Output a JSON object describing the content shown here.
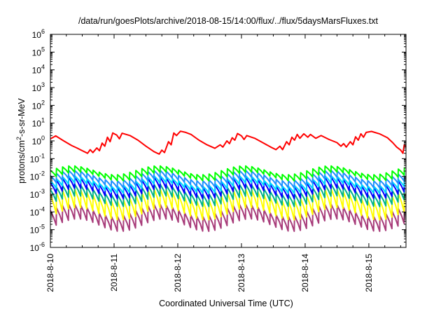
{
  "chart_data": {
    "type": "line",
    "title": "/data/run/goesPlots/archive/2018-08-15/14:00/flux/../flux/5daysMarsFluxes.txt",
    "xlabel": "Coordinated Universal Time (UTC)",
    "ylabel": {
      "pre": "protons/cm",
      "sup": "2",
      "post": "-s-sr-MeV"
    },
    "y_scale": "log",
    "ylim_exponents": [
      -6,
      6
    ],
    "y_ticks": [
      {
        "base": "10",
        "exp": "6"
      },
      {
        "base": "10",
        "exp": "5"
      },
      {
        "base": "10",
        "exp": "4"
      },
      {
        "base": "10",
        "exp": "3"
      },
      {
        "base": "10",
        "exp": "2"
      },
      {
        "base": "10",
        "exp": "1"
      },
      {
        "base": "10",
        "exp": "0"
      },
      {
        "base": "10",
        "exp": "-1"
      },
      {
        "base": "10",
        "exp": "-2"
      },
      {
        "base": "10",
        "exp": "-3"
      },
      {
        "base": "10",
        "exp": "-4"
      },
      {
        "base": "10",
        "exp": "-5"
      },
      {
        "base": "10",
        "exp": "-6"
      }
    ],
    "x_ticks": [
      "2018-8-10",
      "2018-8-11",
      "2018-8-12",
      "2018-8-13",
      "2018-8-14",
      "2018-8-15"
    ],
    "x_start": "2018-08-10T00:00",
    "x_end": "2018-08-15T14:00",
    "grid": false,
    "legend": "none",
    "series": [
      {
        "color": "#ff0000",
        "kind": "smooth",
        "points": [
          [
            "2018-08-10T00:00",
            1.3
          ],
          [
            "2018-08-10T02:00",
            1.9
          ],
          [
            "2018-08-10T05:00",
            1.0
          ],
          [
            "2018-08-10T08:00",
            0.55
          ],
          [
            "2018-08-10T10:00",
            0.4
          ],
          [
            "2018-08-10T12:00",
            0.28
          ],
          [
            "2018-08-10T14:00",
            0.2
          ],
          [
            "2018-08-10T15:00",
            0.32
          ],
          [
            "2018-08-10T16:00",
            0.22
          ],
          [
            "2018-08-10T17:30",
            0.4
          ],
          [
            "2018-08-10T18:30",
            0.28
          ],
          [
            "2018-08-10T19:30",
            0.75
          ],
          [
            "2018-08-10T20:30",
            0.5
          ],
          [
            "2018-08-10T21:30",
            1.6
          ],
          [
            "2018-08-10T22:30",
            0.9
          ],
          [
            "2018-08-10T23:30",
            2.8
          ],
          [
            "2018-08-11T01:00",
            2.1
          ],
          [
            "2018-08-11T02:00",
            1.3
          ],
          [
            "2018-08-11T03:00",
            2.7
          ],
          [
            "2018-08-11T06:00",
            2.0
          ],
          [
            "2018-08-11T09:00",
            1.1
          ],
          [
            "2018-08-11T12:00",
            0.5
          ],
          [
            "2018-08-11T15:00",
            0.25
          ],
          [
            "2018-08-11T17:00",
            0.18
          ],
          [
            "2018-08-11T18:00",
            0.3
          ],
          [
            "2018-08-11T19:00",
            0.22
          ],
          [
            "2018-08-11T20:30",
            0.9
          ],
          [
            "2018-08-11T21:30",
            0.6
          ],
          [
            "2018-08-11T22:30",
            2.8
          ],
          [
            "2018-08-11T23:30",
            2.0
          ],
          [
            "2018-08-12T01:00",
            3.5
          ],
          [
            "2018-08-12T03:00",
            3.0
          ],
          [
            "2018-08-12T05:00",
            2.3
          ],
          [
            "2018-08-12T08:00",
            1.1
          ],
          [
            "2018-08-12T11:00",
            0.6
          ],
          [
            "2018-08-12T14:00",
            0.38
          ],
          [
            "2018-08-12T16:00",
            0.6
          ],
          [
            "2018-08-12T17:00",
            0.45
          ],
          [
            "2018-08-12T18:30",
            1.0
          ],
          [
            "2018-08-12T19:30",
            0.7
          ],
          [
            "2018-08-12T20:30",
            1.5
          ],
          [
            "2018-08-12T21:30",
            1.1
          ],
          [
            "2018-08-12T22:30",
            2.6
          ],
          [
            "2018-08-13T00:00",
            1.9
          ],
          [
            "2018-08-13T01:00",
            1.2
          ],
          [
            "2018-08-13T02:00",
            2.0
          ],
          [
            "2018-08-13T05:00",
            1.4
          ],
          [
            "2018-08-13T08:00",
            0.8
          ],
          [
            "2018-08-13T11:00",
            0.45
          ],
          [
            "2018-08-13T13:00",
            0.32
          ],
          [
            "2018-08-13T14:30",
            0.5
          ],
          [
            "2018-08-13T15:30",
            0.32
          ],
          [
            "2018-08-13T17:00",
            0.9
          ],
          [
            "2018-08-13T18:00",
            0.6
          ],
          [
            "2018-08-13T19:00",
            1.6
          ],
          [
            "2018-08-13T20:00",
            1.1
          ],
          [
            "2018-08-13T21:00",
            2.3
          ],
          [
            "2018-08-13T22:00",
            1.4
          ],
          [
            "2018-08-13T23:30",
            2.5
          ],
          [
            "2018-08-14T01:00",
            1.6
          ],
          [
            "2018-08-14T02:00",
            2.3
          ],
          [
            "2018-08-14T04:00",
            1.4
          ],
          [
            "2018-08-14T06:00",
            2.0
          ],
          [
            "2018-08-14T09:00",
            1.2
          ],
          [
            "2018-08-14T12:00",
            0.8
          ],
          [
            "2018-08-14T13:30",
            0.5
          ],
          [
            "2018-08-14T14:30",
            0.7
          ],
          [
            "2018-08-14T15:30",
            0.45
          ],
          [
            "2018-08-14T17:00",
            0.9
          ],
          [
            "2018-08-14T18:00",
            0.6
          ],
          [
            "2018-08-14T19:00",
            1.7
          ],
          [
            "2018-08-14T20:00",
            1.1
          ],
          [
            "2018-08-14T21:00",
            2.5
          ],
          [
            "2018-08-14T22:00",
            1.6
          ],
          [
            "2018-08-14T23:00",
            3.0
          ],
          [
            "2018-08-15T01:00",
            3.4
          ],
          [
            "2018-08-15T04:00",
            2.5
          ],
          [
            "2018-08-15T07:00",
            1.5
          ],
          [
            "2018-08-15T09:00",
            0.8
          ],
          [
            "2018-08-15T10:30",
            0.45
          ],
          [
            "2018-08-15T12:00",
            0.3
          ],
          [
            "2018-08-15T12:50",
            0.2
          ],
          [
            "2018-08-15T13:20",
            0.6
          ],
          [
            "2018-08-15T14:00",
            0.45
          ]
        ]
      },
      {
        "color": "#00ff00",
        "kind": "sawtooth",
        "base": 0.022,
        "low": 0.01,
        "period_hours": 2.3,
        "curve_amp": 0.25
      },
      {
        "color": "#1e90ff",
        "kind": "sawtooth",
        "base": 0.011,
        "low": 0.0045,
        "period_hours": 2.3,
        "curve_amp": 0.3
      },
      {
        "color": "#00d8ff",
        "kind": "sawtooth",
        "base": 0.0055,
        "low": 0.0022,
        "period_hours": 2.3,
        "curve_amp": 0.3
      },
      {
        "color": "#0000ff",
        "kind": "sawtooth",
        "base": 0.0045,
        "low": 0.0011,
        "period_hours": 2.3,
        "curve_amp": 0.3
      },
      {
        "color": "#00b38a",
        "kind": "sawtooth",
        "base": 0.0018,
        "low": 0.0004,
        "period_hours": 2.3,
        "curve_amp": 0.3
      },
      {
        "color": "#ffff00",
        "kind": "sawtooth",
        "base": 0.0009,
        "low": 8e-05,
        "period_hours": 2.3,
        "curve_amp": 0.35
      },
      {
        "color": "#a83c7a",
        "kind": "sawtooth",
        "base": 0.00012,
        "low": 1.8e-05,
        "period_hours": 2.3,
        "curve_amp": 0.35
      }
    ]
  }
}
